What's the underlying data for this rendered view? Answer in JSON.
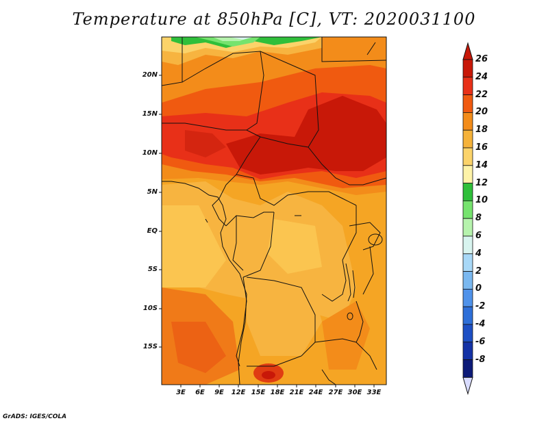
{
  "title": "Temperature at 850hPa [C], VT: 2020031100",
  "credit": "GrADS: IGES/COLA",
  "lat_labels": [
    "20N",
    "15N",
    "10N",
    "5N",
    "EQ",
    "5S",
    "10S",
    "15S"
  ],
  "lon_labels": [
    "3E",
    "6E",
    "9E",
    "12E",
    "15E",
    "18E",
    "21E",
    "24E",
    "27E",
    "30E",
    "33E"
  ],
  "colorbar": {
    "labels": [
      "26",
      "24",
      "22",
      "20",
      "18",
      "16",
      "14",
      "12",
      "10",
      "8",
      "6",
      "4",
      "2",
      "0",
      "-2",
      "-4",
      "-6",
      "-8"
    ],
    "colors": [
      "#c81808",
      "#e83018",
      "#f05a10",
      "#f38c1a",
      "#f5b23a",
      "#fbd36a",
      "#fef3a8",
      "#2fbf3a",
      "#76e36e",
      "#b6f3ad",
      "#d8f4ef",
      "#a8d8f7",
      "#7ab8f0",
      "#4f92ea",
      "#2e6fd8",
      "#1d4fc4",
      "#1432a6",
      "#0c1a78"
    ],
    "over_color": "#c81808",
    "under_color": "#d9dcff"
  }
}
